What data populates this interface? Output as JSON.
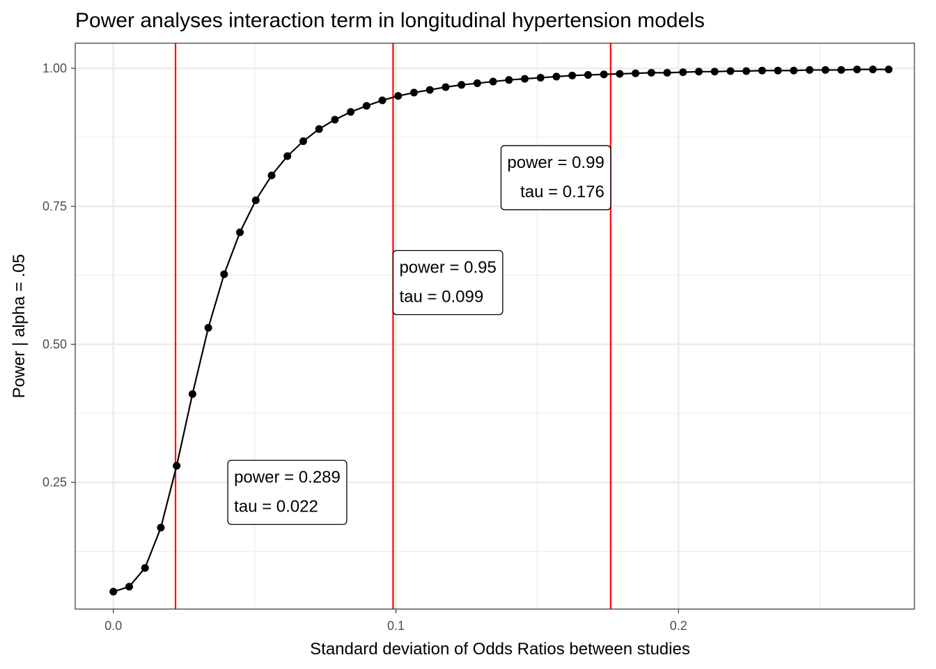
{
  "chart_data": {
    "type": "line",
    "title": "Power analyses interaction term in longitudinal hypertension models",
    "xlabel": "Standard deviation of Odds Ratios between studies",
    "ylabel": "Power | alpha = .05",
    "xlim": [
      -0.0135,
      0.2835
    ],
    "ylim": [
      0.0205,
      1.0455
    ],
    "x_ticks": [
      {
        "value": 0.0,
        "label": "0.0"
      },
      {
        "value": 0.1,
        "label": "0.1"
      },
      {
        "value": 0.2,
        "label": "0.2"
      }
    ],
    "y_ticks": [
      {
        "value": 0.25,
        "label": "0.25"
      },
      {
        "value": 0.5,
        "label": "0.50"
      },
      {
        "value": 0.75,
        "label": "0.75"
      },
      {
        "value": 1.0,
        "label": "1.00"
      }
    ],
    "grid": true,
    "colors": {
      "series": "#000000",
      "vline": "#ff0000"
    },
    "series": [
      {
        "x": [
          0.0,
          0.0056,
          0.0112,
          0.0168,
          0.0224,
          0.028,
          0.0336,
          0.0392,
          0.0448,
          0.0504,
          0.056,
          0.0616,
          0.0672,
          0.0728,
          0.0784,
          0.084,
          0.0896,
          0.0952,
          0.1008,
          0.1064,
          0.112,
          0.1176,
          0.1232,
          0.1288,
          0.1344,
          0.14,
          0.1456,
          0.1512,
          0.1568,
          0.1624,
          0.168,
          0.1736,
          0.1792,
          0.1848,
          0.1904,
          0.196,
          0.2016,
          0.2072,
          0.2128,
          0.2184,
          0.224,
          0.2296,
          0.2352,
          0.2408,
          0.2464,
          0.252,
          0.2576,
          0.2632,
          0.2688,
          0.2744
        ],
        "values": [
          0.052,
          0.061,
          0.095,
          0.168,
          0.28,
          0.41,
          0.53,
          0.627,
          0.703,
          0.761,
          0.806,
          0.841,
          0.868,
          0.89,
          0.907,
          0.921,
          0.932,
          0.942,
          0.95,
          0.956,
          0.961,
          0.966,
          0.97,
          0.973,
          0.976,
          0.979,
          0.981,
          0.983,
          0.985,
          0.987,
          0.988,
          0.989,
          0.99,
          0.991,
          0.992,
          0.992,
          0.993,
          0.994,
          0.994,
          0.995,
          0.995,
          0.996,
          0.996,
          0.996,
          0.997,
          0.997,
          0.997,
          0.998,
          0.998,
          0.998
        ]
      }
    ],
    "vlines": [
      0.022,
      0.099,
      0.176
    ],
    "annotations": [
      {
        "x": 0.0405,
        "y": 0.29,
        "align": "left",
        "lines": [
          "power = 0.289",
          "tau =  0.022"
        ]
      },
      {
        "x": 0.099,
        "y": 0.67,
        "align": "left",
        "lines": [
          "power = 0.95",
          "tau =  0.099"
        ]
      },
      {
        "x": 0.176,
        "y": 0.86,
        "align": "right",
        "lines": [
          "power = 0.99",
          "tau =  0.176"
        ]
      }
    ]
  }
}
